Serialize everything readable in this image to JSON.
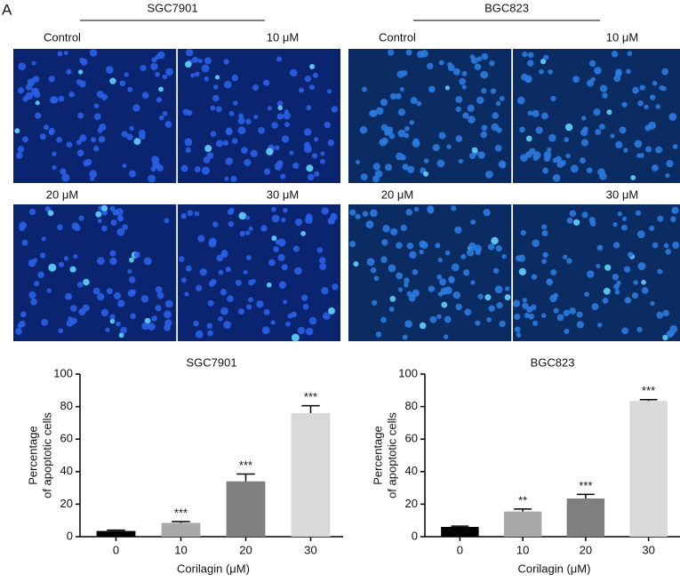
{
  "panel_label": "A",
  "figure": {
    "groups": [
      {
        "name": "SGC7901",
        "images": [
          "Control",
          "10 μM",
          "20 μM",
          "30 μM"
        ]
      },
      {
        "name": "BGC823",
        "images": [
          "Control",
          "10 μM",
          "20 μM",
          "30 μM"
        ]
      }
    ]
  },
  "chart_data": [
    {
      "type": "bar",
      "title": "SGC7901",
      "categories": [
        "0",
        "10",
        "20",
        "30"
      ],
      "values": [
        3.5,
        8.5,
        34,
        76
      ],
      "errors": [
        0.5,
        0.8,
        4.5,
        4.5
      ],
      "annotations": [
        null,
        "***",
        "***",
        "***"
      ],
      "colors": [
        "#000000",
        "#a9a9a9",
        "#7f7f7f",
        "#d9d9d9"
      ],
      "ylabel": [
        "Percentage",
        "of apoptotic cells"
      ],
      "xlabel": "Corilagin (μM)",
      "ylim": [
        0,
        100
      ],
      "yticks": [
        0,
        20,
        40,
        60,
        80,
        100
      ]
    },
    {
      "type": "bar",
      "title": "BGC823",
      "categories": [
        "0",
        "10",
        "20",
        "30"
      ],
      "values": [
        6,
        15.5,
        23.5,
        83.5
      ],
      "errors": [
        0.5,
        1.5,
        2.5,
        0.8
      ],
      "annotations": [
        null,
        "**",
        "***",
        "***"
      ],
      "colors": [
        "#000000",
        "#a9a9a9",
        "#7f7f7f",
        "#d9d9d9"
      ],
      "ylabel": [
        "Percentage",
        "of apoptotic cells"
      ],
      "xlabel": "Corilagin (μM)",
      "ylim": [
        0,
        100
      ],
      "yticks": [
        0,
        20,
        40,
        60,
        80,
        100
      ]
    }
  ]
}
